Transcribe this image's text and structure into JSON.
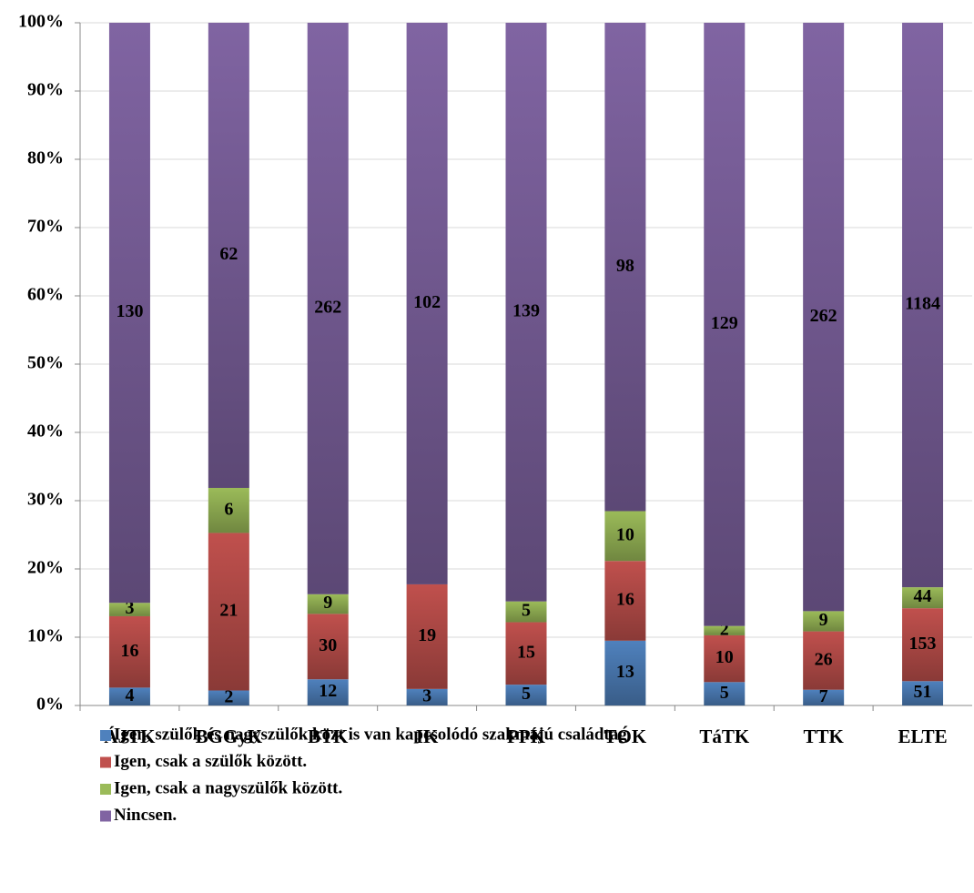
{
  "chart_data": {
    "type": "bar",
    "stacked": "percent",
    "categories": [
      "ÁJTK",
      "BGGyK",
      "BTK",
      "IK",
      "PPK",
      "TÓK",
      "TáTK",
      "TTK",
      "ELTE"
    ],
    "series": [
      {
        "name": "Igen, szülők és nagyszülők közt is van kapcsolódó szakmájú családtag.",
        "color": "#4f81bd",
        "values": [
          4,
          2,
          12,
          3,
          5,
          13,
          5,
          7,
          51
        ]
      },
      {
        "name": "Igen, csak a szülők között.",
        "color": "#c0504d",
        "values": [
          16,
          21,
          30,
          19,
          15,
          16,
          10,
          26,
          153
        ]
      },
      {
        "name": "Igen, csak a nagyszülők között.",
        "color": "#9bbb59",
        "values": [
          3,
          6,
          9,
          null,
          5,
          10,
          2,
          9,
          44
        ]
      },
      {
        "name": "Nincsen.",
        "color": "#8064a2",
        "values": [
          130,
          62,
          262,
          102,
          139,
          98,
          129,
          262,
          1184
        ]
      }
    ],
    "ylim": [
      0,
      100
    ],
    "yticks": [
      {
        "value": 0,
        "label": "0%"
      },
      {
        "value": 10,
        "label": "10%"
      },
      {
        "value": 20,
        "label": "20%"
      },
      {
        "value": 30,
        "label": "30%"
      },
      {
        "value": 40,
        "label": "40%"
      },
      {
        "value": 50,
        "label": "50%"
      },
      {
        "value": 60,
        "label": "60%"
      },
      {
        "value": 70,
        "label": "70%"
      },
      {
        "value": 80,
        "label": "80%"
      },
      {
        "value": 90,
        "label": "90%"
      },
      {
        "value": 100,
        "label": "100%"
      }
    ],
    "grid": true,
    "legend": "bottom"
  }
}
